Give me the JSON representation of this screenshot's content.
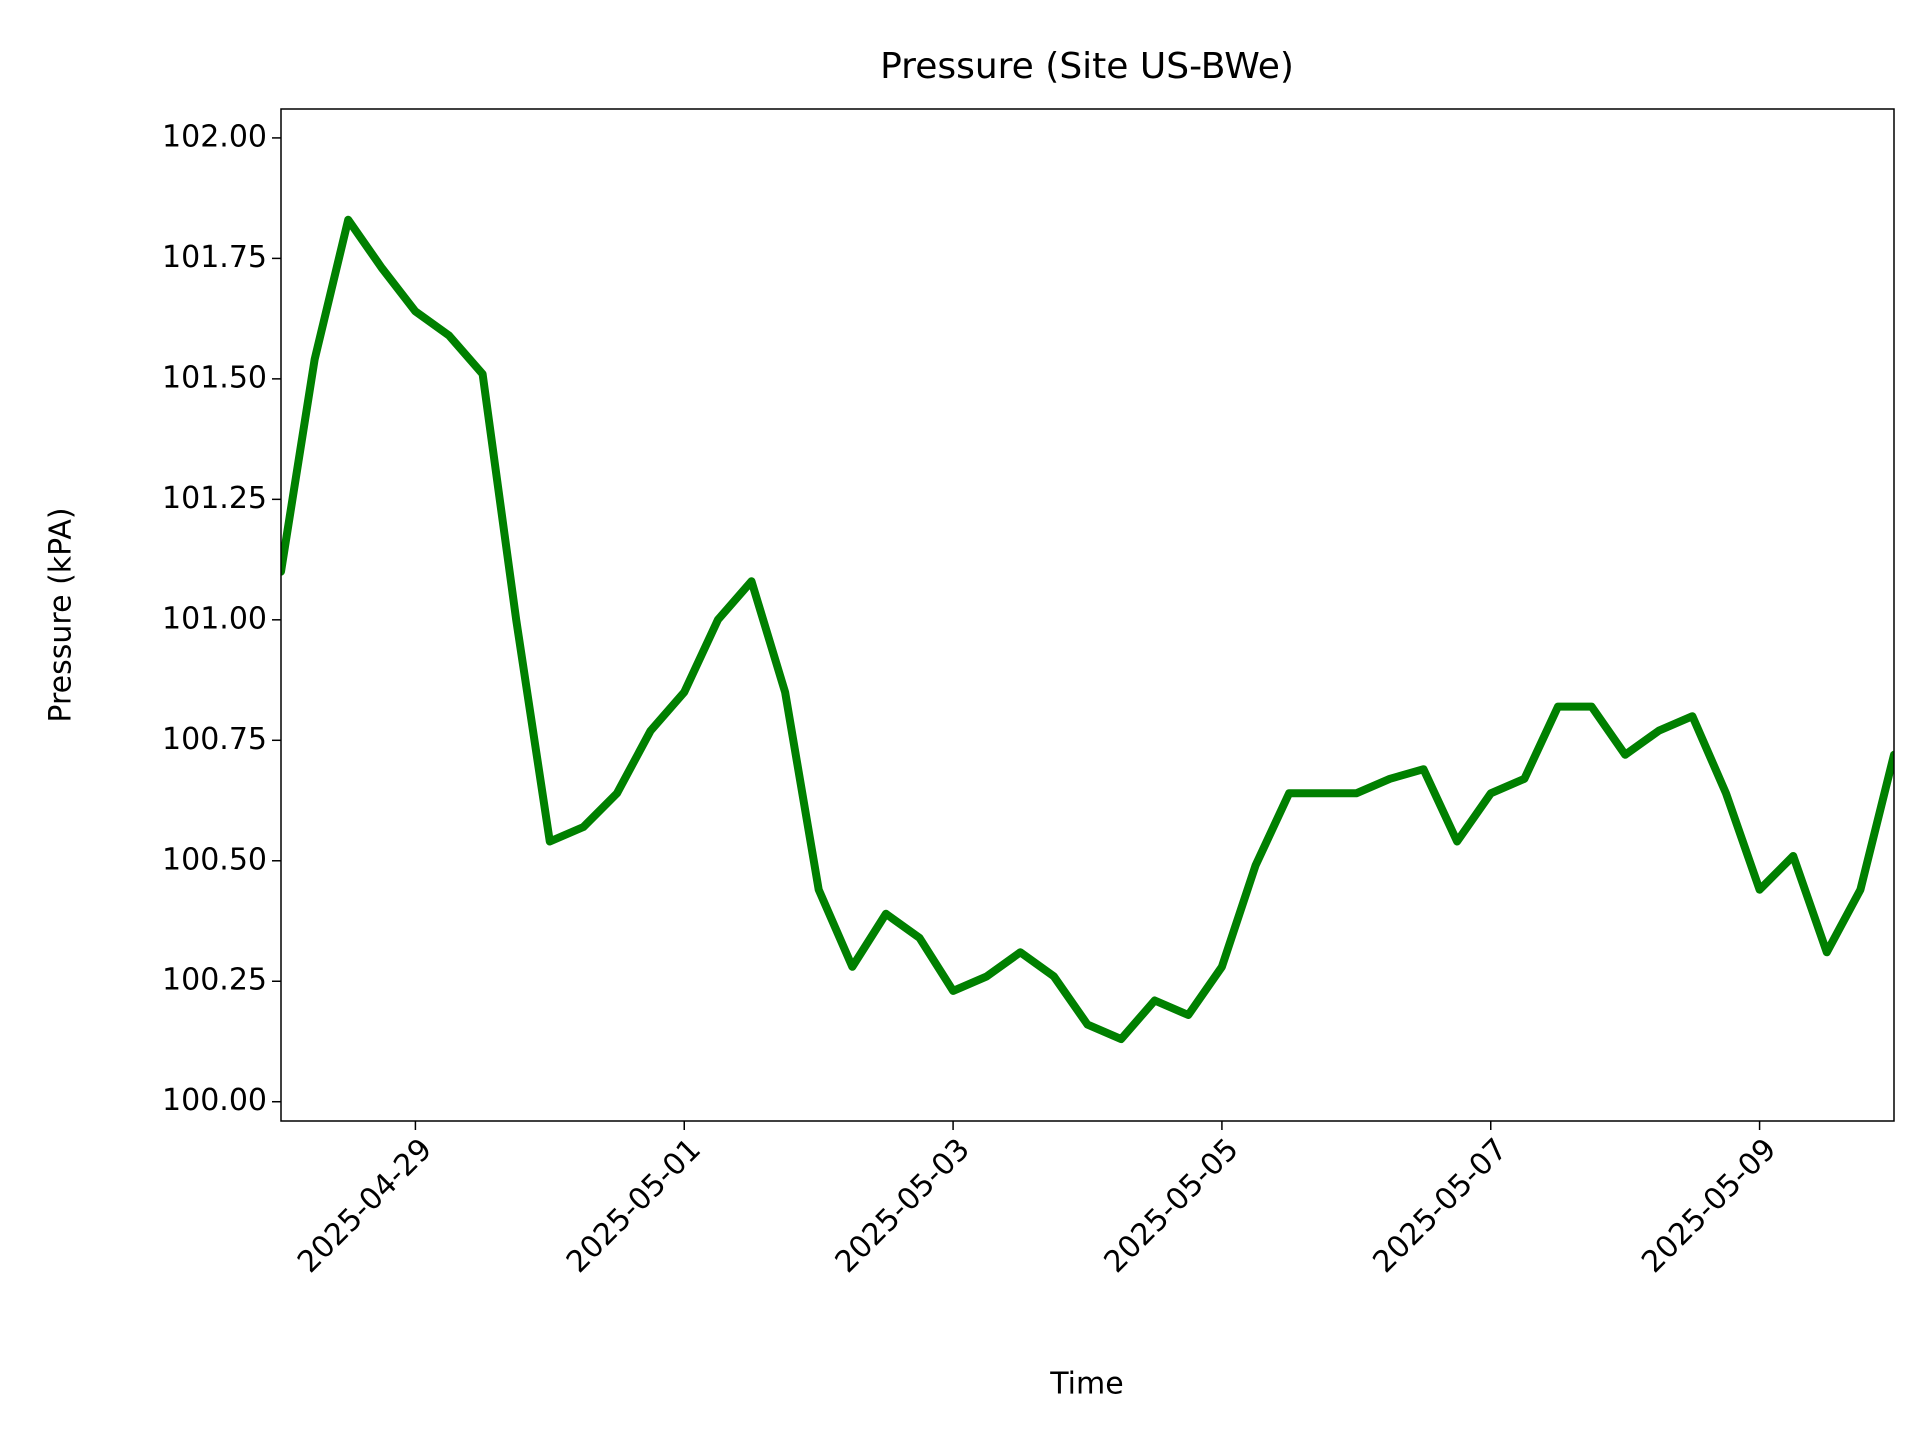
{
  "chart_data": {
    "type": "line",
    "title": "Pressure (Site US-BWe)",
    "xlabel": "Time",
    "ylabel": "Pressure (kPA)",
    "x": [
      "2025-04-28T00:00",
      "2025-04-28T06:00",
      "2025-04-28T12:00",
      "2025-04-28T18:00",
      "2025-04-29T00:00",
      "2025-04-29T06:00",
      "2025-04-29T12:00",
      "2025-04-29T18:00",
      "2025-04-30T00:00",
      "2025-04-30T06:00",
      "2025-04-30T12:00",
      "2025-04-30T18:00",
      "2025-05-01T00:00",
      "2025-05-01T06:00",
      "2025-05-01T12:00",
      "2025-05-01T18:00",
      "2025-05-02T00:00",
      "2025-05-02T06:00",
      "2025-05-02T12:00",
      "2025-05-02T18:00",
      "2025-05-03T00:00",
      "2025-05-03T06:00",
      "2025-05-03T12:00",
      "2025-05-03T18:00",
      "2025-05-04T00:00",
      "2025-05-04T06:00",
      "2025-05-04T12:00",
      "2025-05-04T18:00",
      "2025-05-05T00:00",
      "2025-05-05T06:00",
      "2025-05-05T12:00",
      "2025-05-05T18:00",
      "2025-05-06T00:00",
      "2025-05-06T06:00",
      "2025-05-06T12:00",
      "2025-05-06T18:00",
      "2025-05-07T00:00",
      "2025-05-07T06:00",
      "2025-05-07T12:00",
      "2025-05-07T18:00",
      "2025-05-08T00:00",
      "2025-05-08T06:00",
      "2025-05-08T12:00",
      "2025-05-08T18:00",
      "2025-05-09T00:00",
      "2025-05-09T06:00",
      "2025-05-09T12:00",
      "2025-05-09T18:00",
      "2025-05-10T00:00"
    ],
    "series": [
      {
        "name": "Pressure",
        "color": "#008000",
        "values": [
          101.1,
          101.54,
          101.83,
          101.73,
          101.64,
          101.59,
          101.51,
          101.0,
          100.54,
          100.57,
          100.64,
          100.77,
          100.85,
          101.0,
          101.08,
          100.85,
          100.44,
          100.28,
          100.39,
          100.34,
          100.23,
          100.26,
          100.31,
          100.26,
          100.16,
          100.13,
          100.21,
          100.18,
          100.28,
          100.49,
          100.64,
          100.64,
          100.64,
          100.67,
          100.69,
          100.54,
          100.64,
          100.67,
          100.82,
          100.82,
          100.72,
          100.77,
          100.8,
          100.64,
          100.44,
          100.51,
          100.31,
          100.44,
          100.72
        ]
      }
    ],
    "xlim": [
      "2025-04-28",
      "2025-05-10"
    ],
    "xticks": [
      "2025-04-29",
      "2025-05-01",
      "2025-05-03",
      "2025-05-05",
      "2025-05-07",
      "2025-05-09"
    ],
    "ylim": [
      99.96,
      102.06
    ],
    "yticks": [
      {
        "value": 100,
        "label": "100.00"
      },
      {
        "value": 100.25,
        "label": "100.25"
      },
      {
        "value": 100.5,
        "label": "100.50"
      },
      {
        "value": 100.75,
        "label": "100.75"
      },
      {
        "value": 101,
        "label": "101.00"
      },
      {
        "value": 101.25,
        "label": "101.25"
      },
      {
        "value": 101.5,
        "label": "101.50"
      },
      {
        "value": 101.75,
        "label": "101.75"
      },
      {
        "value": 102,
        "label": "102.00"
      }
    ],
    "grid": false
  }
}
